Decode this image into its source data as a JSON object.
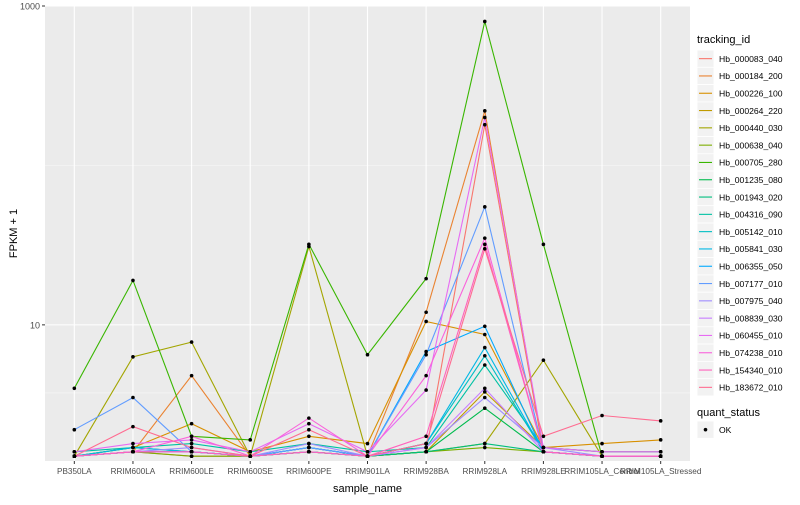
{
  "chart_data": {
    "type": "line",
    "title": "",
    "xlabel": "sample_name",
    "ylabel": "FPKM + 1",
    "y_scale": "log10",
    "ylim": [
      1.4,
      1000
    ],
    "y_ticks": [
      10,
      1000
    ],
    "y_tick_labels": [
      "10",
      "1000"
    ],
    "grid": true,
    "legend_position": "right",
    "categories": [
      "PB350LA",
      "RRIM600LA",
      "RRIM600LE",
      "RRIM600SE",
      "RRIM600PE",
      "RRIM901LA",
      "RRIM928BA",
      "RRIM928LA",
      "RRIM928LE",
      "RRIM105LA_Control",
      "RRIM105LA_Stressed"
    ],
    "legend_title": "tracking_id",
    "series": [
      {
        "name": "Hb_000083_040",
        "color": "#F8766D",
        "values": [
          1.5,
          1.6,
          1.5,
          1.5,
          1.6,
          1.5,
          1.6,
          180,
          1.6,
          1.5,
          1.5
        ]
      },
      {
        "name": "Hb_000184_200",
        "color": "#EA8331",
        "values": [
          1.5,
          1.6,
          4.8,
          1.5,
          1.6,
          1.5,
          12,
          220,
          1.6,
          1.5,
          1.5
        ]
      },
      {
        "name": "Hb_000226_100",
        "color": "#D89000",
        "values": [
          1.5,
          1.7,
          2.4,
          1.6,
          2.0,
          1.8,
          10.5,
          8.7,
          1.7,
          1.8,
          1.9
        ]
      },
      {
        "name": "Hb_000264_220",
        "color": "#C09B00",
        "values": [
          1.5,
          1.6,
          1.6,
          1.5,
          1.6,
          1.5,
          1.6,
          3.8,
          1.7,
          1.6,
          1.6
        ]
      },
      {
        "name": "Hb_000440_030",
        "color": "#A3A500",
        "values": [
          1.5,
          6.3,
          7.8,
          1.5,
          31,
          1.5,
          1.6,
          1.8,
          6.0,
          1.5,
          1.5
        ]
      },
      {
        "name": "Hb_000638_040",
        "color": "#7CAE00",
        "values": [
          1.5,
          1.6,
          1.5,
          1.5,
          1.6,
          1.5,
          1.6,
          1.7,
          1.6,
          1.5,
          1.5
        ]
      },
      {
        "name": "Hb_000705_280",
        "color": "#39B600",
        "values": [
          4.0,
          19.0,
          2.0,
          1.9,
          32,
          6.5,
          19.5,
          800,
          32,
          1.5,
          1.5
        ]
      },
      {
        "name": "Hb_001235_080",
        "color": "#00BB4E",
        "values": [
          1.5,
          1.7,
          1.6,
          1.5,
          1.7,
          1.5,
          1.6,
          3.0,
          1.6,
          1.5,
          1.5
        ]
      },
      {
        "name": "Hb_001943_020",
        "color": "#00BF7D",
        "values": [
          1.5,
          1.6,
          1.6,
          1.5,
          1.6,
          1.5,
          1.6,
          1.8,
          1.6,
          1.5,
          1.5
        ]
      },
      {
        "name": "Hb_004316_090",
        "color": "#00C1A3",
        "values": [
          1.6,
          1.7,
          1.8,
          1.6,
          1.8,
          1.6,
          1.7,
          5.6,
          1.7,
          1.6,
          1.6
        ]
      },
      {
        "name": "Hb_005142_010",
        "color": "#00BFC4",
        "values": [
          1.5,
          1.6,
          1.6,
          1.5,
          1.6,
          1.5,
          1.8,
          6.4,
          1.6,
          1.5,
          1.5
        ]
      },
      {
        "name": "Hb_005841_030",
        "color": "#00B8E5",
        "values": [
          1.5,
          1.7,
          1.6,
          1.5,
          1.7,
          1.5,
          1.8,
          7.2,
          1.6,
          1.5,
          1.5
        ]
      },
      {
        "name": "Hb_006355_050",
        "color": "#00A9FF",
        "values": [
          1.5,
          1.6,
          1.6,
          1.5,
          1.7,
          1.5,
          6.8,
          9.8,
          1.6,
          1.5,
          1.5
        ]
      },
      {
        "name": "Hb_007177_010",
        "color": "#619CFF",
        "values": [
          2.2,
          3.5,
          1.6,
          1.5,
          1.7,
          1.5,
          6.5,
          55,
          1.6,
          1.5,
          1.5
        ]
      },
      {
        "name": "Hb_007975_040",
        "color": "#9F8CFF",
        "values": [
          1.5,
          1.6,
          1.7,
          1.5,
          1.8,
          1.5,
          1.7,
          3.5,
          1.7,
          1.5,
          1.5
        ]
      },
      {
        "name": "Hb_008839_030",
        "color": "#C77CFF",
        "values": [
          1.5,
          1.6,
          1.6,
          1.5,
          1.6,
          1.5,
          1.7,
          4.0,
          1.6,
          1.5,
          1.5
        ]
      },
      {
        "name": "Hb_060455_010",
        "color": "#E76BF3",
        "values": [
          1.6,
          1.8,
          1.9,
          1.6,
          2.4,
          1.6,
          3.9,
          200,
          1.7,
          1.6,
          1.6
        ]
      },
      {
        "name": "Hb_074238_010",
        "color": "#FA62DB",
        "values": [
          1.5,
          1.6,
          2.0,
          1.5,
          2.6,
          1.5,
          4.8,
          35,
          1.6,
          1.5,
          1.5
        ]
      },
      {
        "name": "Hb_154340_010",
        "color": "#FF62BC",
        "values": [
          1.5,
          1.6,
          1.6,
          1.5,
          1.6,
          1.5,
          2.0,
          32,
          1.6,
          1.5,
          1.5
        ]
      },
      {
        "name": "Hb_183672_010",
        "color": "#FF6C91",
        "values": [
          1.5,
          2.3,
          1.7,
          1.5,
          2.2,
          1.5,
          1.8,
          30,
          2.0,
          2.7,
          2.5
        ]
      }
    ],
    "legend2_title": "quant_status",
    "legend2_items": [
      {
        "label": "OK",
        "shape": "point",
        "color": "#000000"
      }
    ]
  }
}
